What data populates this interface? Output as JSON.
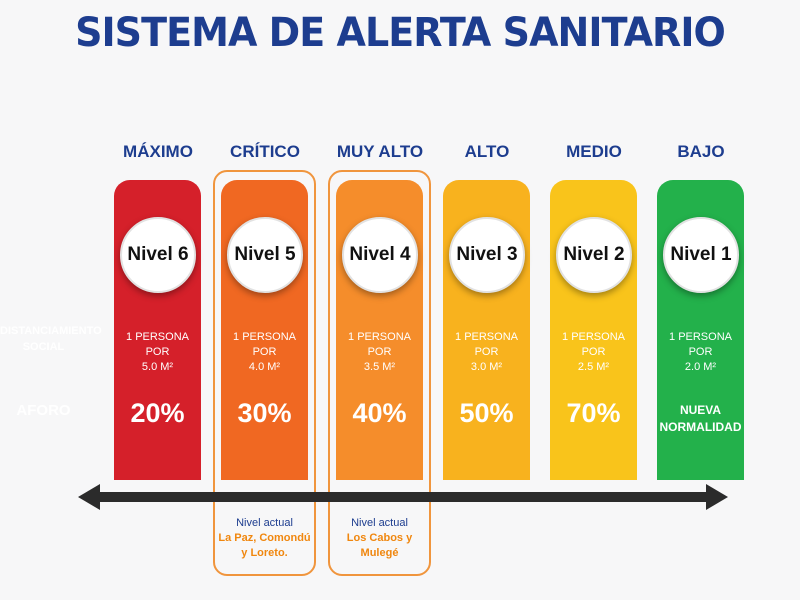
{
  "title": "SISTEMA DE ALERTA SANITARIO",
  "row_labels": {
    "distanciamiento": "DISTANCIAMIENTO SOCIAL",
    "aforo": "AFORO"
  },
  "levels": [
    {
      "name": "MÁXIMO",
      "nivel": "Nivel 6",
      "dist_1": "1 PERSONA POR",
      "dist_2": "5.0 M²",
      "aforo": "20%",
      "color": "#d5202a"
    },
    {
      "name": "CRÍTICO",
      "nivel": "Nivel 5",
      "dist_1": "1 PERSONA POR",
      "dist_2": "4.0 M²",
      "aforo": "30%",
      "color": "#f06822"
    },
    {
      "name": "MUY ALTO",
      "nivel": "Nivel 4",
      "dist_1": "1 PERSONA POR",
      "dist_2": "3.5 M²",
      "aforo": "40%",
      "color": "#f58d2b"
    },
    {
      "name": "ALTO",
      "nivel": "Nivel 3",
      "dist_1": "1 PERSONA POR",
      "dist_2": "3.0 M²",
      "aforo": "50%",
      "color": "#f8b21e"
    },
    {
      "name": "MEDIO",
      "nivel": "Nivel 2",
      "dist_1": "1 PERSONA POR",
      "dist_2": "2.5 M²",
      "aforo": "70%",
      "color": "#f9c41b"
    },
    {
      "name": "BAJO",
      "nivel": "Nivel 1",
      "dist_1": "1 PERSONA POR",
      "dist_2": "2.0 M²",
      "aforo_1": "NUEVA",
      "aforo_2": "NORMALIDAD",
      "color": "#23b14b"
    }
  ],
  "current": [
    {
      "label": "Nivel actual",
      "places_1": "La Paz, Comondú",
      "places_2": "y Loreto."
    },
    {
      "label": "Nivel actual",
      "places_1": "Los Cabos y",
      "places_2": "Mulegé"
    }
  ]
}
